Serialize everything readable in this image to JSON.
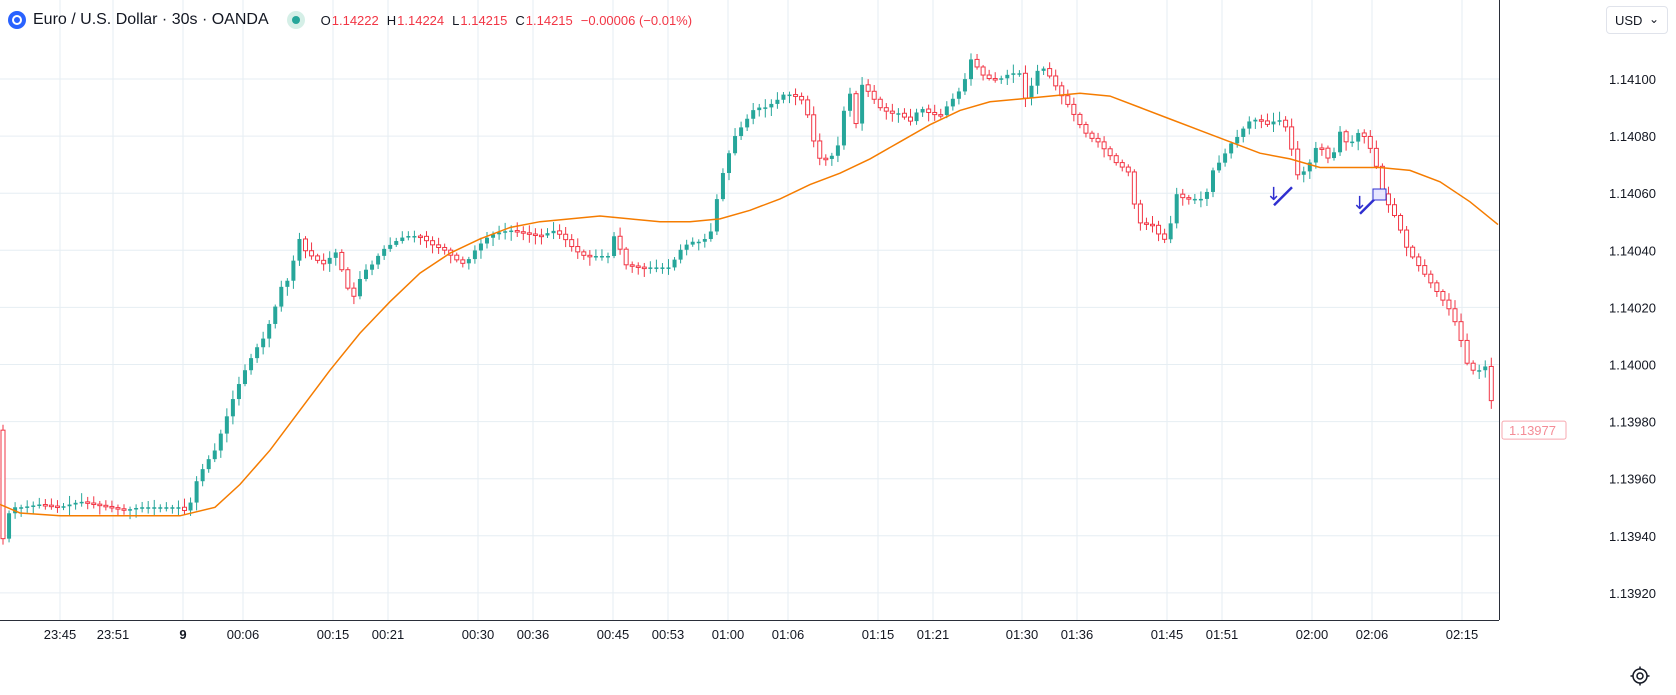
{
  "header": {
    "symbol_title": "Euro / U.S. Dollar · 30s · OANDA",
    "ohlc": [
      {
        "label": "O",
        "value": "1.14222"
      },
      {
        "label": "H",
        "value": "1.14224"
      },
      {
        "label": "L",
        "value": "1.14215"
      },
      {
        "label": "C",
        "value": "1.14215"
      }
    ],
    "change": "−0.00006 (−0.01%)"
  },
  "currency_selector": {
    "label": "USD"
  },
  "icons": {
    "logo": "eurusd-logo-icon",
    "status": "market-open-icon",
    "chevron": "chevron-down-icon",
    "settings": "gear-icon"
  },
  "colors": {
    "up": "#26a69a",
    "down": "#f23645",
    "ma": "#f57c00",
    "drawing": "#2f2fd0",
    "grid": "#e6eef3"
  },
  "chart_data": {
    "type": "candlestick",
    "interval": "30s",
    "symbol": "EURUSD",
    "y_ticks": [
      "1.14100",
      "1.14080",
      "1.14060",
      "1.14040",
      "1.14020",
      "1.14000",
      "1.13980",
      "1.13960",
      "1.13940",
      "1.13920"
    ],
    "x_ticks": [
      "23:45",
      "23:51",
      "9",
      "00:06",
      "00:15",
      "00:21",
      "00:30",
      "00:36",
      "00:45",
      "00:53",
      "01:00",
      "01:06",
      "01:15",
      "01:21",
      "01:30",
      "01:36",
      "01:45",
      "01:51",
      "02:00",
      "02:06",
      "02:15"
    ],
    "last_price_label": "1.13977",
    "grid": true,
    "close_path": [
      [
        0,
        1.1393
      ],
      [
        5,
        1.13945
      ],
      [
        12,
        1.1395
      ],
      [
        22,
        1.1395
      ],
      [
        40,
        1.13951
      ],
      [
        60,
        1.1395
      ],
      [
        80,
        1.13952
      ],
      [
        95,
        1.13951
      ],
      [
        110,
        1.1395
      ],
      [
        125,
        1.13949
      ],
      [
        140,
        1.1395
      ],
      [
        160,
        1.1395
      ],
      [
        180,
        1.1395
      ],
      [
        188,
        1.13948
      ],
      [
        195,
        1.13958
      ],
      [
        205,
        1.13965
      ],
      [
        215,
        1.1397
      ],
      [
        225,
        1.1398
      ],
      [
        235,
        1.1399
      ],
      [
        245,
        1.13998
      ],
      [
        255,
        1.14005
      ],
      [
        265,
        1.1401
      ],
      [
        275,
        1.1402
      ],
      [
        282,
        1.14028
      ],
      [
        290,
        1.1403
      ],
      [
        298,
        1.14045
      ],
      [
        305,
        1.1404
      ],
      [
        315,
        1.14037
      ],
      [
        325,
        1.14035
      ],
      [
        335,
        1.1404
      ],
      [
        345,
        1.1403
      ],
      [
        352,
        1.14022
      ],
      [
        362,
        1.14032
      ],
      [
        372,
        1.14035
      ],
      [
        382,
        1.1404
      ],
      [
        395,
        1.14043
      ],
      [
        405,
        1.14045
      ],
      [
        420,
        1.14045
      ],
      [
        432,
        1.14042
      ],
      [
        445,
        1.1404
      ],
      [
        455,
        1.14037
      ],
      [
        465,
        1.14035
      ],
      [
        475,
        1.1404
      ],
      [
        485,
        1.14044
      ],
      [
        495,
        1.14046
      ],
      [
        510,
        1.14047
      ],
      [
        525,
        1.14046
      ],
      [
        540,
        1.14045
      ],
      [
        555,
        1.14047
      ],
      [
        565,
        1.14044
      ],
      [
        575,
        1.1404
      ],
      [
        585,
        1.14038
      ],
      [
        598,
        1.14038
      ],
      [
        608,
        1.14038
      ],
      [
        615,
        1.14046
      ],
      [
        625,
        1.14035
      ],
      [
        640,
        1.14034
      ],
      [
        655,
        1.14034
      ],
      [
        670,
        1.14034
      ],
      [
        680,
        1.1404
      ],
      [
        690,
        1.14043
      ],
      [
        700,
        1.14043
      ],
      [
        710,
        1.14045
      ],
      [
        718,
        1.1406
      ],
      [
        725,
        1.1407
      ],
      [
        735,
        1.1408
      ],
      [
        745,
        1.14085
      ],
      [
        755,
        1.1409
      ],
      [
        765,
        1.1409
      ],
      [
        775,
        1.14092
      ],
      [
        785,
        1.14095
      ],
      [
        795,
        1.14094
      ],
      [
        805,
        1.14092
      ],
      [
        812,
        1.1408
      ],
      [
        820,
        1.14072
      ],
      [
        830,
        1.14072
      ],
      [
        840,
        1.14078
      ],
      [
        848,
        1.141
      ],
      [
        855,
        1.14082
      ],
      [
        862,
        1.14098
      ],
      [
        870,
        1.14095
      ],
      [
        880,
        1.1409
      ],
      [
        890,
        1.14088
      ],
      [
        900,
        1.14088
      ],
      [
        910,
        1.14085
      ],
      [
        920,
        1.1409
      ],
      [
        930,
        1.14088
      ],
      [
        940,
        1.14087
      ],
      [
        950,
        1.14092
      ],
      [
        958,
        1.14095
      ],
      [
        965,
        1.141
      ],
      [
        972,
        1.14108
      ],
      [
        980,
        1.14102
      ],
      [
        990,
        1.141
      ],
      [
        1000,
        1.141
      ],
      [
        1010,
        1.14102
      ],
      [
        1020,
        1.14102
      ],
      [
        1025,
        1.14093
      ],
      [
        1032,
        1.14098
      ],
      [
        1040,
        1.14105
      ],
      [
        1048,
        1.14102
      ],
      [
        1055,
        1.14098
      ],
      [
        1062,
        1.14094
      ],
      [
        1070,
        1.1409
      ],
      [
        1078,
        1.14085
      ],
      [
        1088,
        1.1408
      ],
      [
        1098,
        1.14078
      ],
      [
        1108,
        1.14074
      ],
      [
        1118,
        1.1407
      ],
      [
        1128,
        1.14068
      ],
      [
        1135,
        1.14055
      ],
      [
        1142,
        1.14048
      ],
      [
        1150,
        1.1405
      ],
      [
        1160,
        1.14045
      ],
      [
        1168,
        1.14043
      ],
      [
        1175,
        1.1406
      ],
      [
        1185,
        1.14058
      ],
      [
        1195,
        1.14058
      ],
      [
        1205,
        1.14058
      ],
      [
        1213,
        1.14068
      ],
      [
        1222,
        1.14072
      ],
      [
        1230,
        1.14077
      ],
      [
        1238,
        1.1408
      ],
      [
        1248,
        1.14085
      ],
      [
        1258,
        1.14086
      ],
      [
        1268,
        1.14084
      ],
      [
        1278,
        1.14086
      ],
      [
        1285,
        1.14084
      ],
      [
        1292,
        1.14075
      ],
      [
        1298,
        1.14066
      ],
      [
        1305,
        1.14068
      ],
      [
        1312,
        1.14072
      ],
      [
        1318,
        1.14078
      ],
      [
        1325,
        1.14074
      ],
      [
        1332,
        1.1407
      ],
      [
        1338,
        1.14083
      ],
      [
        1345,
        1.14078
      ],
      [
        1352,
        1.14078
      ],
      [
        1360,
        1.14082
      ],
      [
        1368,
        1.14078
      ],
      [
        1376,
        1.1407
      ],
      [
        1382,
        1.1406
      ],
      [
        1390,
        1.14055
      ],
      [
        1398,
        1.1405
      ],
      [
        1405,
        1.14042
      ],
      [
        1412,
        1.14038
      ],
      [
        1420,
        1.14034
      ],
      [
        1428,
        1.1403
      ],
      [
        1436,
        1.14026
      ],
      [
        1444,
        1.14022
      ],
      [
        1452,
        1.14018
      ],
      [
        1460,
        1.1401
      ],
      [
        1466,
        1.14001
      ],
      [
        1472,
        1.13998
      ],
      [
        1480,
        1.13998
      ],
      [
        1488,
        1.14
      ],
      [
        1494,
        1.13977
      ]
    ],
    "moving_average": [
      [
        0,
        1.13951
      ],
      [
        20,
        1.13948
      ],
      [
        60,
        1.13947
      ],
      [
        120,
        1.13947
      ],
      [
        180,
        1.13947
      ],
      [
        215,
        1.1395
      ],
      [
        240,
        1.13958
      ],
      [
        270,
        1.1397
      ],
      [
        300,
        1.13984
      ],
      [
        330,
        1.13998
      ],
      [
        360,
        1.14011
      ],
      [
        390,
        1.14022
      ],
      [
        420,
        1.14032
      ],
      [
        450,
        1.14039
      ],
      [
        480,
        1.14044
      ],
      [
        510,
        1.14048
      ],
      [
        540,
        1.1405
      ],
      [
        570,
        1.14051
      ],
      [
        600,
        1.14052
      ],
      [
        630,
        1.14051
      ],
      [
        660,
        1.1405
      ],
      [
        690,
        1.1405
      ],
      [
        720,
        1.14051
      ],
      [
        750,
        1.14054
      ],
      [
        780,
        1.14058
      ],
      [
        810,
        1.14063
      ],
      [
        840,
        1.14067
      ],
      [
        870,
        1.14072
      ],
      [
        900,
        1.14078
      ],
      [
        930,
        1.14084
      ],
      [
        960,
        1.14089
      ],
      [
        990,
        1.14092
      ],
      [
        1020,
        1.14093
      ],
      [
        1050,
        1.14094
      ],
      [
        1080,
        1.14095
      ],
      [
        1110,
        1.14094
      ],
      [
        1140,
        1.1409
      ],
      [
        1170,
        1.14086
      ],
      [
        1200,
        1.14082
      ],
      [
        1230,
        1.14078
      ],
      [
        1260,
        1.14074
      ],
      [
        1290,
        1.14072
      ],
      [
        1320,
        1.14069
      ],
      [
        1350,
        1.14069
      ],
      [
        1380,
        1.14069
      ],
      [
        1410,
        1.14068
      ],
      [
        1440,
        1.14064
      ],
      [
        1470,
        1.14057
      ],
      [
        1498,
        1.14049
      ]
    ],
    "markers": [
      {
        "type": "short-signal",
        "x": 1270,
        "price": 1.1406
      },
      {
        "type": "short-signal",
        "x": 1356,
        "price": 1.14057
      }
    ]
  }
}
